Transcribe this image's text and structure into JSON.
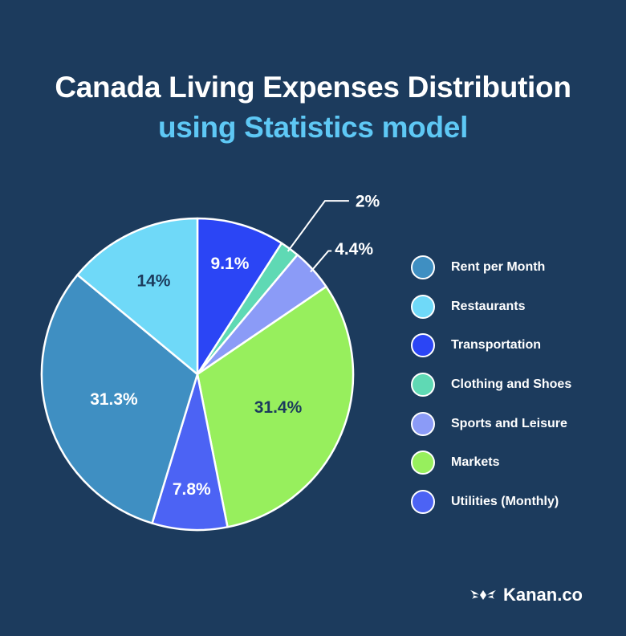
{
  "chart_data": {
    "type": "pie",
    "title": "Canada Living Expenses Distribution",
    "subtitle": "using Statistics model",
    "unit": "%",
    "legend_position": "right",
    "slices": [
      {
        "name": "Transportation",
        "value": 9.1,
        "label": "9.1%",
        "color": "#2b45f5",
        "label_color": "#ffffff"
      },
      {
        "name": "Clothing and Shoes",
        "value": 2.0,
        "label": "2%",
        "color": "#5fd9b4",
        "label_color": "#ffffff"
      },
      {
        "name": "Sports and Leisure",
        "value": 4.4,
        "label": "4.4%",
        "color": "#8b9bf7",
        "label_color": "#ffffff"
      },
      {
        "name": "Markets",
        "value": 31.4,
        "label": "31.4%",
        "color": "#97ef5d",
        "label_color": "#1c3b5d"
      },
      {
        "name": "Utilities (Monthly)",
        "value": 7.8,
        "label": "7.8%",
        "color": "#4c63f4",
        "label_color": "#ffffff"
      },
      {
        "name": "Rent per Month",
        "value": 31.3,
        "label": "31.3%",
        "color": "#3f8fc2",
        "label_color": "#ffffff"
      },
      {
        "name": "Restaurants",
        "value": 14.0,
        "label": "14%",
        "color": "#6fd9f8",
        "label_color": "#1c3b5d"
      }
    ]
  },
  "legend": [
    {
      "label": "Rent per Month",
      "color": "#3f8fc2"
    },
    {
      "label": "Restaurants",
      "color": "#6fd9f8"
    },
    {
      "label": "Transportation",
      "color": "#2b45f5"
    },
    {
      "label": "Clothing and Shoes",
      "color": "#5fd9b4"
    },
    {
      "label": "Sports and Leisure",
      "color": "#8b9bf7"
    },
    {
      "label": "Markets",
      "color": "#97ef5d"
    },
    {
      "label": "Utilities (Monthly)",
      "color": "#4c63f4"
    }
  ],
  "brand": {
    "name": "Kanan.co",
    "icon": "kanan-logo-icon"
  }
}
